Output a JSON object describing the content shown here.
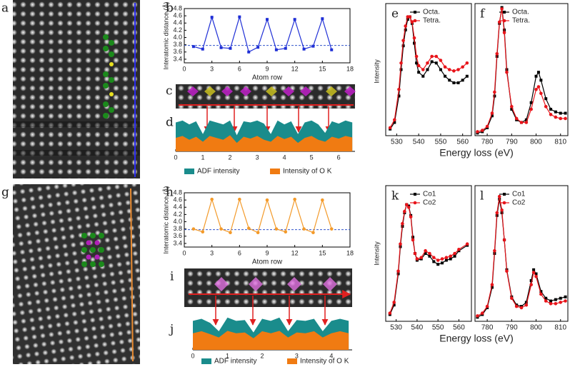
{
  "image_labels": [
    "a",
    "c",
    "g",
    "i"
  ],
  "chart_data": [
    {
      "type": "line",
      "label": "b",
      "ylabel": "Interatomic distance (Å)",
      "xlabel": "Atom row",
      "x": [
        1,
        2,
        3,
        4,
        5,
        6,
        7,
        8,
        9,
        10,
        11,
        12,
        13,
        14,
        15,
        16
      ],
      "values": [
        3.75,
        3.68,
        4.56,
        3.72,
        3.7,
        4.57,
        3.6,
        3.73,
        4.5,
        3.66,
        3.7,
        4.5,
        3.68,
        3.76,
        4.52,
        3.66
      ],
      "color": "#1f2fd6",
      "marker": "square",
      "hline": 3.78,
      "hline_color": "#3355cc",
      "xlim": [
        0,
        18
      ],
      "xticks": [
        0,
        3,
        6,
        9,
        12,
        15,
        18
      ],
      "ylim": [
        3.3,
        4.8
      ],
      "yticks": [
        3.4,
        3.6,
        3.8,
        {
          "value": 4,
          "label": "4.0"
        },
        4.2,
        4.4,
        4.6,
        4.8
      ]
    },
    {
      "type": "area",
      "label": "d",
      "x": [
        0,
        0.25,
        0.5,
        0.75,
        1,
        1.25,
        1.5,
        1.75,
        2,
        2.25,
        2.5,
        2.75,
        3,
        3.25,
        3.5,
        3.75,
        4,
        4.25,
        4.5,
        4.75,
        5,
        5.25,
        5.5,
        5.75,
        6,
        6.25,
        6.5
      ],
      "series": [
        {
          "name": "ADF intensity",
          "color": "#1a8c8c",
          "values": [
            0.75,
            0.8,
            0.7,
            0.78,
            0.45,
            0.8,
            0.75,
            0.7,
            0.8,
            0.42,
            0.78,
            0.75,
            0.8,
            0.72,
            0.45,
            0.8,
            0.7,
            0.78,
            0.45,
            0.75,
            0.8,
            0.7,
            0.48,
            0.78,
            0.72,
            0.8,
            0.75
          ]
        },
        {
          "name": "Intensity of O K",
          "color": "#f07b12",
          "values": [
            0.35,
            0.4,
            0.3,
            0.38,
            0.25,
            0.4,
            0.35,
            0.3,
            0.42,
            0.22,
            0.38,
            0.33,
            0.4,
            0.3,
            0.25,
            0.4,
            0.32,
            0.38,
            0.22,
            0.35,
            0.4,
            0.3,
            0.25,
            0.38,
            0.33,
            0.4,
            0.36
          ]
        }
      ],
      "xlim": [
        0,
        6.6
      ],
      "xticks": [
        0,
        1,
        2,
        3,
        4,
        5,
        6
      ],
      "ylim": [
        0,
        1
      ]
    },
    {
      "type": "line",
      "label": "e",
      "ylabel": "Intensity",
      "xlabel": "Energy loss (eV)",
      "x": [
        527,
        529,
        531,
        532,
        533,
        534,
        535,
        536,
        537,
        538,
        539,
        540,
        542,
        544,
        546,
        548,
        550,
        552,
        554,
        556,
        558,
        560,
        562
      ],
      "series": [
        {
          "name": "Octa.",
          "color": "#000000",
          "marker": "square",
          "values": [
            0.05,
            0.1,
            0.3,
            0.5,
            0.68,
            0.8,
            0.88,
            0.9,
            0.85,
            0.7,
            0.55,
            0.48,
            0.45,
            0.5,
            0.56,
            0.55,
            0.5,
            0.45,
            0.42,
            0.4,
            0.4,
            0.42,
            0.45
          ]
        },
        {
          "name": "Tetra.",
          "color": "#e8141a",
          "marker": "circle",
          "values": [
            0.06,
            0.12,
            0.35,
            0.55,
            0.72,
            0.83,
            0.9,
            0.9,
            0.86,
            0.74,
            0.6,
            0.53,
            0.5,
            0.55,
            0.6,
            0.6,
            0.57,
            0.52,
            0.5,
            0.49,
            0.5,
            0.52,
            0.55
          ]
        }
      ],
      "xlim": [
        525,
        564
      ],
      "xticks": [
        530,
        540,
        550,
        560
      ],
      "ylim": [
        0,
        1
      ]
    },
    {
      "type": "line",
      "label": "f",
      "x": [
        776,
        778,
        780,
        782,
        783,
        784,
        785,
        786,
        787,
        788,
        790,
        792,
        794,
        796,
        798,
        800,
        801,
        802,
        804,
        806,
        808,
        810,
        812
      ],
      "series": [
        {
          "name": "Octa.",
          "color": "#000000",
          "marker": "square",
          "values": [
            0.02,
            0.03,
            0.06,
            0.15,
            0.3,
            0.6,
            0.85,
            0.97,
            0.8,
            0.5,
            0.2,
            0.12,
            0.1,
            0.12,
            0.25,
            0.45,
            0.48,
            0.42,
            0.28,
            0.2,
            0.18,
            0.17,
            0.17
          ]
        },
        {
          "name": "Tetra.",
          "color": "#e8141a",
          "marker": "circle",
          "values": [
            0.03,
            0.04,
            0.07,
            0.17,
            0.33,
            0.62,
            0.86,
            0.96,
            0.78,
            0.48,
            0.22,
            0.13,
            0.1,
            0.1,
            0.2,
            0.35,
            0.37,
            0.32,
            0.22,
            0.16,
            0.14,
            0.13,
            0.13
          ]
        }
      ],
      "xlim": [
        775,
        813
      ],
      "xticks": [
        780,
        790,
        800,
        810
      ],
      "ylim": [
        0,
        1
      ]
    },
    {
      "type": "line",
      "label": "h",
      "ylabel": "Interatomic distance (Å)",
      "xlabel": "Atom row",
      "x": [
        1,
        2,
        3,
        4,
        5,
        6,
        7,
        8,
        9,
        10,
        11,
        12,
        13,
        14,
        15,
        16
      ],
      "values": [
        3.8,
        3.72,
        4.62,
        3.8,
        3.7,
        4.62,
        3.82,
        3.7,
        4.6,
        3.8,
        3.72,
        4.62,
        3.8,
        3.7,
        4.6,
        3.8
      ],
      "color": "#f39a2a",
      "marker": "circle",
      "hline": 3.78,
      "hline_color": "#3355cc",
      "xlim": [
        0,
        18
      ],
      "xticks": [
        0,
        3,
        6,
        9,
        12,
        15,
        18
      ],
      "ylim": [
        3.3,
        4.8
      ],
      "yticks": [
        3.4,
        3.6,
        3.8,
        {
          "value": 4,
          "label": "4.0"
        },
        4.2,
        4.4,
        4.6,
        4.8
      ]
    },
    {
      "type": "area",
      "label": "j",
      "x": [
        0,
        0.25,
        0.5,
        0.75,
        1,
        1.25,
        1.5,
        1.75,
        2,
        2.25,
        2.5,
        2.75,
        3,
        3.25,
        3.5,
        3.75,
        4,
        4.25,
        4.5
      ],
      "series": [
        {
          "name": "ADF intensity",
          "color": "#1a8c8c",
          "values": [
            0.7,
            0.75,
            0.65,
            0.45,
            0.78,
            0.7,
            0.72,
            0.42,
            0.75,
            0.7,
            0.78,
            0.45,
            0.72,
            0.7,
            0.75,
            0.45,
            0.7,
            0.75,
            0.7
          ]
        },
        {
          "name": "Intensity of O K",
          "color": "#f07b12",
          "values": [
            0.4,
            0.45,
            0.38,
            0.3,
            0.46,
            0.4,
            0.42,
            0.28,
            0.45,
            0.4,
            0.46,
            0.3,
            0.42,
            0.4,
            0.45,
            0.3,
            0.4,
            0.45,
            0.4
          ]
        }
      ],
      "xlim": [
        0,
        4.6
      ],
      "xticks": [
        0,
        1,
        2,
        3,
        4
      ],
      "ylim": [
        0,
        1
      ]
    },
    {
      "type": "line",
      "label": "k",
      "ylabel": "Intensity",
      "xlabel": "Energy loss (eV)",
      "x": [
        527,
        529,
        531,
        532,
        533,
        534,
        535,
        536,
        537,
        538,
        539,
        540,
        542,
        544,
        546,
        548,
        550,
        552,
        554,
        556,
        558,
        560,
        564
      ],
      "series": [
        {
          "name": "Co1",
          "color": "#000000",
          "marker": "square",
          "values": [
            0.05,
            0.12,
            0.35,
            0.55,
            0.7,
            0.8,
            0.86,
            0.85,
            0.78,
            0.62,
            0.5,
            0.45,
            0.46,
            0.5,
            0.48,
            0.44,
            0.42,
            0.43,
            0.45,
            0.46,
            0.48,
            0.52,
            0.56
          ]
        },
        {
          "name": "Co2",
          "color": "#e8141a",
          "marker": "circle",
          "values": [
            0.06,
            0.14,
            0.37,
            0.57,
            0.72,
            0.81,
            0.86,
            0.84,
            0.77,
            0.6,
            0.5,
            0.46,
            0.47,
            0.52,
            0.5,
            0.47,
            0.45,
            0.46,
            0.47,
            0.48,
            0.5,
            0.53,
            0.57
          ]
        }
      ],
      "xlim": [
        525,
        566
      ],
      "xticks": [
        530,
        540,
        550,
        560
      ],
      "ylim": [
        0,
        1
      ]
    },
    {
      "type": "line",
      "label": "l",
      "x": [
        776,
        778,
        780,
        782,
        783,
        784,
        785,
        786,
        787,
        788,
        790,
        792,
        794,
        796,
        798,
        799,
        800,
        802,
        804,
        806,
        808,
        810,
        812
      ],
      "series": [
        {
          "name": "Co1",
          "color": "#000000",
          "marker": "square",
          "values": [
            0.03,
            0.05,
            0.1,
            0.25,
            0.5,
            0.78,
            0.9,
            0.8,
            0.6,
            0.38,
            0.18,
            0.12,
            0.11,
            0.14,
            0.3,
            0.38,
            0.35,
            0.22,
            0.17,
            0.15,
            0.16,
            0.17,
            0.18
          ]
        },
        {
          "name": "Co2",
          "color": "#e8141a",
          "marker": "circle",
          "values": [
            0.04,
            0.06,
            0.11,
            0.27,
            0.52,
            0.8,
            0.92,
            0.82,
            0.6,
            0.37,
            0.17,
            0.11,
            0.1,
            0.12,
            0.27,
            0.36,
            0.33,
            0.2,
            0.15,
            0.13,
            0.13,
            0.14,
            0.15
          ]
        }
      ],
      "xlim": [
        775,
        813
      ],
      "xticks": [
        780,
        790,
        800,
        810
      ],
      "ylim": [
        0,
        1
      ]
    }
  ]
}
